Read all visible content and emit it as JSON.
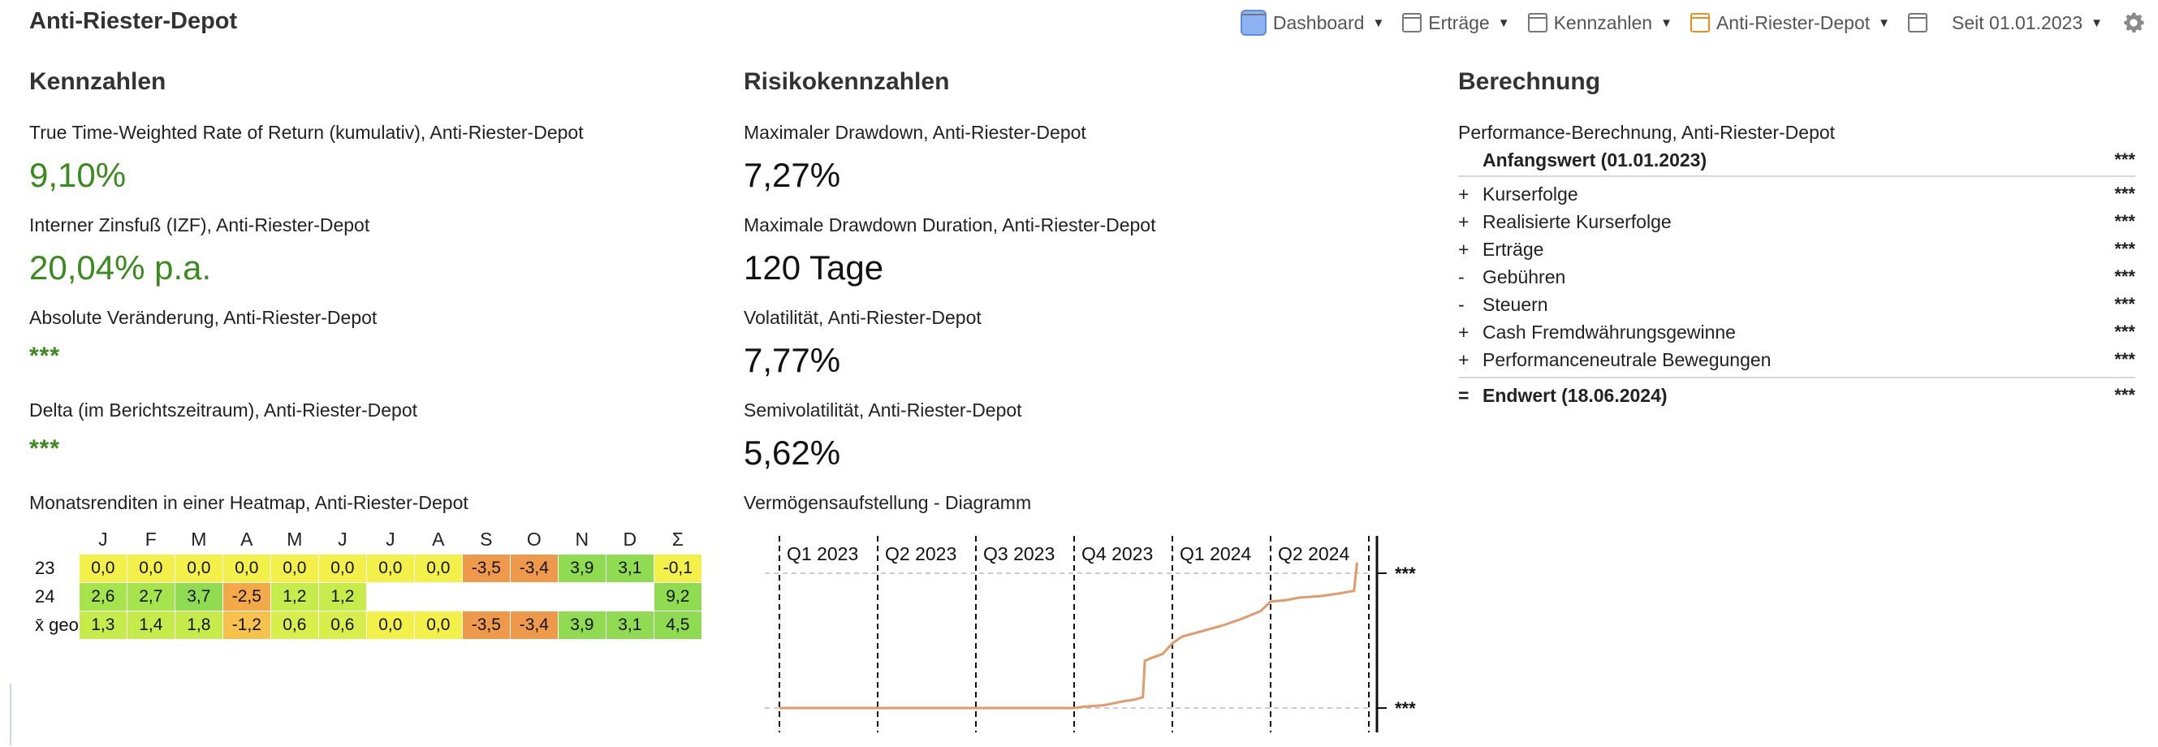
{
  "app": {
    "title": "Anti-Riester-Depot"
  },
  "toolbar": {
    "items": [
      {
        "label": "Dashboard",
        "icon": "dashboard-icon"
      },
      {
        "label": "Erträge",
        "icon": "view-icon"
      },
      {
        "label": "Kennzahlen",
        "icon": "view-icon"
      },
      {
        "label": "Anti-Riester-Depot",
        "icon": "portfolio-icon"
      }
    ],
    "period": "Seit 01.01.2023"
  },
  "kennzahlen": {
    "title": "Kennzahlen",
    "metrics": [
      {
        "label": "True Time-Weighted Rate of Return (kumulativ), Anti-Riester-Depot",
        "value": "9,10%"
      },
      {
        "label": "Interner Zinsfuß (IZF), Anti-Riester-Depot",
        "value": "20,04% p.a."
      },
      {
        "label": "Absolute Veränderung, Anti-Riester-Depot",
        "value": "***"
      },
      {
        "label": "Delta (im Berichtszeitraum), Anti-Riester-Depot",
        "value": "***"
      }
    ],
    "heatmap": {
      "title": "Monatsrenditen in einer Heatmap, Anti-Riester-Depot",
      "columns": [
        "J",
        "F",
        "M",
        "A",
        "M",
        "J",
        "J",
        "A",
        "S",
        "O",
        "N",
        "D",
        "Σ"
      ],
      "rows": [
        {
          "label": "23",
          "cells": [
            "0,0",
            "0,0",
            "0,0",
            "0,0",
            "0,0",
            "0,0",
            "0,0",
            "0,0",
            "-3,5",
            "-3,4",
            "3,9",
            "3,1",
            "-0,1"
          ]
        },
        {
          "label": "24",
          "cells": [
            "2,6",
            "2,7",
            "3,7",
            "-2,5",
            "1,2",
            "1,2",
            "",
            "",
            "",
            "",
            "",
            "",
            "9,2"
          ]
        },
        {
          "label": "x̄ geo",
          "cells": [
            "1,3",
            "1,4",
            "1,8",
            "-1,2",
            "0,6",
            "0,6",
            "0,0",
            "0,0",
            "-3,5",
            "-3,4",
            "3,9",
            "3,1",
            "4,5"
          ]
        }
      ]
    }
  },
  "risiko": {
    "title": "Risikokennzahlen",
    "metrics": [
      {
        "label": "Maximaler Drawdown, Anti-Riester-Depot",
        "value": "7,27%"
      },
      {
        "label": "Maximale Drawdown Duration, Anti-Riester-Depot",
        "value": "120 Tage"
      },
      {
        "label": "Volatilität, Anti-Riester-Depot",
        "value": "7,77%"
      },
      {
        "label": "Semivolatilität, Anti-Riester-Depot",
        "value": "5,62%"
      }
    ],
    "chart_title": "Vermögensaufstellung - Diagramm"
  },
  "chart_data": {
    "type": "line",
    "categories": [
      "Q1 2023",
      "Q2 2023",
      "Q3 2023",
      "Q4 2023",
      "Q1 2024",
      "Q2 2024"
    ],
    "y_tick_labels": [
      "***",
      "***"
    ],
    "series": [
      {
        "values": [
          [
            0,
            0
          ],
          [
            0.5,
            0
          ],
          [
            1,
            0
          ],
          [
            1.5,
            0
          ],
          [
            2,
            0
          ],
          [
            2.5,
            0
          ],
          [
            3,
            0
          ],
          [
            3.1,
            0.01
          ],
          [
            3.3,
            0.02
          ],
          [
            3.5,
            0.05
          ],
          [
            3.6,
            0.06
          ],
          [
            3.7,
            0.08
          ],
          [
            3.72,
            0.35
          ],
          [
            3.78,
            0.37
          ],
          [
            3.9,
            0.4
          ],
          [
            4.0,
            0.48
          ],
          [
            4.1,
            0.53
          ],
          [
            4.3,
            0.57
          ],
          [
            4.5,
            0.61
          ],
          [
            4.7,
            0.66
          ],
          [
            4.9,
            0.72
          ],
          [
            5.0,
            0.79
          ],
          [
            5.15,
            0.8
          ],
          [
            5.3,
            0.82
          ],
          [
            5.5,
            0.83
          ],
          [
            5.7,
            0.85
          ],
          [
            5.85,
            0.87
          ],
          [
            5.88,
            1.08
          ]
        ],
        "color": "#e29a6b"
      }
    ]
  },
  "berechnung": {
    "title": "Berechnung",
    "subtitle": "Performance-Berechnung, Anti-Riester-Depot",
    "start": {
      "label": "Anfangswert (01.01.2023)",
      "value": "***"
    },
    "rows": [
      {
        "op": "+",
        "label": "Kurserfolge",
        "value": "***"
      },
      {
        "op": "+",
        "label": "Realisierte Kurserfolge",
        "value": "***"
      },
      {
        "op": "+",
        "label": "Erträge",
        "value": "***"
      },
      {
        "op": "-",
        "label": "Gebühren",
        "value": "***"
      },
      {
        "op": "-",
        "label": "Steuern",
        "value": "***"
      },
      {
        "op": "+",
        "label": "Cash Fremdwährungsgewinne",
        "value": "***"
      },
      {
        "op": "+",
        "label": "Performanceneutrale Bewegungen",
        "value": "***"
      }
    ],
    "end": {
      "op": "=",
      "label": "Endwert (18.06.2024)",
      "value": "***"
    }
  }
}
